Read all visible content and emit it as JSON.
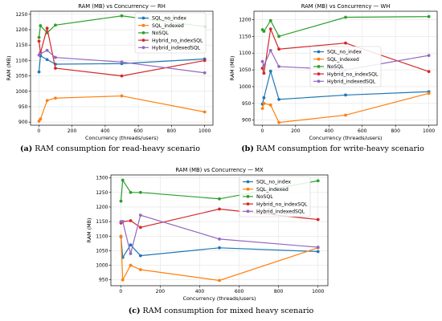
{
  "colors": {
    "SQL_no_index": "#1f77b4",
    "SQL_indexed": "#ff7f0e",
    "NoSQL": "#2ca02c",
    "Hybrid_no_indexSQL": "#d62728",
    "Hybrid_indexedSQL": "#9467bd"
  },
  "captions": [
    {
      "tag": "(a)",
      "text": "RAM consumption for read-heavy scenario"
    },
    {
      "tag": "(b)",
      "text": "RAM consumption for write-heavy scenario"
    },
    {
      "tag": "(c)",
      "text": "RAM consumption for mixed heavy scenario"
    }
  ],
  "chart_data": [
    {
      "type": "line",
      "title": "RAM (MB) vs Concurrency — RH",
      "xlabel": "Concurrency (threads/users)",
      "ylabel": "RAM (MB)",
      "x": [
        1,
        10,
        50,
        100,
        500,
        1000
      ],
      "xlim": [
        -50,
        1050
      ],
      "ylim": [
        890,
        1260
      ],
      "xticks": [
        0,
        200,
        400,
        600,
        800,
        1000
      ],
      "yticks": [
        900,
        950,
        1000,
        1050,
        1100,
        1150,
        1200,
        1250
      ],
      "grid": true,
      "legend": "top-right",
      "series": [
        {
          "name": "SQL_no_index",
          "values": [
            1063,
            1115,
            1103,
            1088,
            1090,
            1105
          ]
        },
        {
          "name": "SQL_indexed",
          "values": [
            903,
            910,
            970,
            978,
            985,
            933
          ]
        },
        {
          "name": "NoSQL",
          "values": [
            1175,
            1213,
            1190,
            1215,
            1245,
            1210
          ]
        },
        {
          "name": "Hybrid_no_indexSQL",
          "values": [
            1163,
            1125,
            1205,
            1075,
            1050,
            1100
          ]
        },
        {
          "name": "Hybrid_indexedSQL",
          "values": [
            1118,
            1122,
            1133,
            1110,
            1095,
            1060
          ]
        }
      ]
    },
    {
      "type": "line",
      "title": "RAM (MB) vs Concurrency — WH",
      "xlabel": "Concurrency (threads/users)",
      "ylabel": "RAM (MB)",
      "x": [
        1,
        10,
        50,
        100,
        500,
        1000
      ],
      "xlim": [
        -50,
        1050
      ],
      "ylim": [
        885,
        1225
      ],
      "xticks": [
        0,
        200,
        400,
        600,
        800,
        1000
      ],
      "yticks": [
        900,
        950,
        1000,
        1050,
        1100,
        1150,
        1200
      ],
      "grid": true,
      "legend": "center-right",
      "series": [
        {
          "name": "SQL_no_index",
          "values": [
            948,
            967,
            1046,
            962,
            975,
            985
          ]
        },
        {
          "name": "SQL_indexed",
          "values": [
            935,
            950,
            945,
            893,
            915,
            980
          ]
        },
        {
          "name": "NoSQL",
          "values": [
            1170,
            1165,
            1197,
            1150,
            1207,
            1209
          ]
        },
        {
          "name": "Hybrid_no_indexSQL",
          "values": [
            1055,
            1040,
            1172,
            1112,
            1130,
            1045
          ]
        },
        {
          "name": "Hybrid_indexedSQL",
          "values": [
            1075,
            1063,
            1108,
            1060,
            1050,
            1093
          ]
        }
      ]
    },
    {
      "type": "line",
      "title": "RAM (MB) vs Concurrency — MX",
      "xlabel": "Concurrency (threads/users)",
      "ylabel": "RAM (MB)",
      "x": [
        1,
        10,
        50,
        100,
        500,
        1000
      ],
      "xlim": [
        -50,
        1050
      ],
      "ylim": [
        930,
        1310
      ],
      "xticks": [
        0,
        200,
        400,
        600,
        800,
        1000
      ],
      "yticks": [
        950,
        1000,
        1050,
        1100,
        1150,
        1200,
        1250,
        1300
      ],
      "grid": true,
      "legend": "top-right",
      "series": [
        {
          "name": "SQL_no_index",
          "values": [
            1098,
            1027,
            1070,
            1033,
            1060,
            1047
          ]
        },
        {
          "name": "SQL_indexed",
          "values": [
            1100,
            950,
            1000,
            985,
            948,
            1060
          ]
        },
        {
          "name": "NoSQL",
          "values": [
            1220,
            1292,
            1250,
            1250,
            1228,
            1290
          ]
        },
        {
          "name": "Hybrid_no_indexSQL",
          "values": [
            1145,
            1150,
            1153,
            1130,
            1193,
            1157
          ]
        },
        {
          "name": "Hybrid_indexedSQL",
          "values": [
            1150,
            1150,
            1040,
            1172,
            1090,
            1062
          ]
        }
      ]
    }
  ]
}
